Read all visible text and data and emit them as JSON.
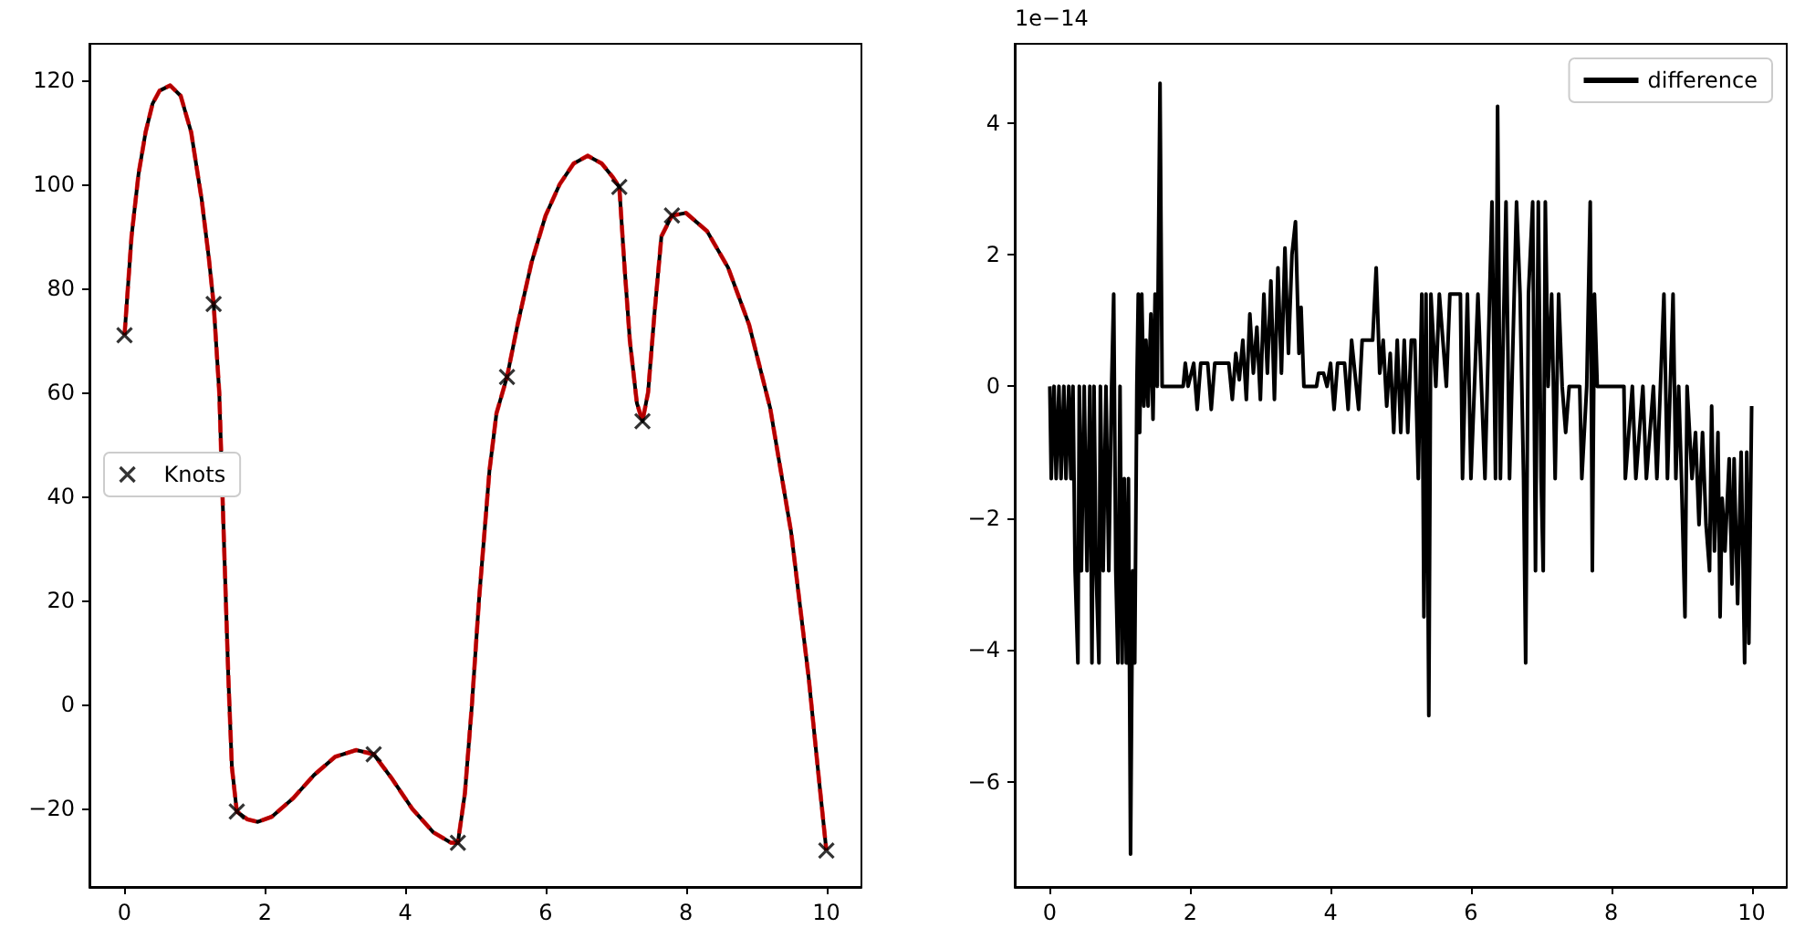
{
  "chart_data": [
    {
      "type": "line",
      "xlim": [
        -0.5,
        10.5
      ],
      "ylim": [
        -35,
        127
      ],
      "xticks": [
        0,
        2,
        4,
        6,
        8,
        10
      ],
      "yticks": [
        -20,
        0,
        20,
        40,
        60,
        80,
        100,
        120
      ],
      "legend": "left",
      "x": [
        0,
        0.1,
        0.2,
        0.3,
        0.4,
        0.5,
        0.65,
        0.8,
        0.95,
        1.1,
        1.2,
        1.27,
        1.35,
        1.42,
        1.48,
        1.53,
        1.6,
        1.75,
        1.9,
        2.1,
        2.4,
        2.7,
        3.0,
        3.3,
        3.55,
        3.8,
        4.1,
        4.4,
        4.65,
        4.75,
        4.85,
        4.95,
        5.05,
        5.2,
        5.3,
        5.45,
        5.6,
        5.8,
        6.0,
        6.2,
        6.4,
        6.6,
        6.8,
        6.95,
        7.05,
        7.12,
        7.2,
        7.3,
        7.38,
        7.46,
        7.55,
        7.65,
        7.8,
        8.0,
        8.3,
        8.6,
        8.9,
        9.2,
        9.5,
        9.75,
        9.9,
        10
      ],
      "series": [
        {
          "color": "#000000",
          "line_style": "solid",
          "values": [
            71,
            90,
            102,
            110,
            115.5,
            118,
            119,
            117,
            110,
            97,
            86,
            77,
            60,
            30,
            5,
            -12,
            -20.5,
            -22,
            -22.5,
            -21.5,
            -18,
            -13.5,
            -10,
            -8.7,
            -9.5,
            -14,
            -20,
            -24.5,
            -26.5,
            -26.5,
            -17,
            0,
            20,
            45,
            56,
            63,
            73,
            85,
            94,
            100,
            104,
            105.5,
            104,
            101.5,
            99.5,
            85,
            70,
            58,
            54.5,
            60,
            75,
            90,
            94,
            94.5,
            91,
            84,
            73,
            57,
            33,
            5,
            -15,
            -28
          ]
        },
        {
          "color": "#ff0000",
          "line_style": "dashed",
          "values": [
            71,
            90,
            102,
            110,
            115.5,
            118,
            119,
            117,
            110,
            97,
            86,
            77,
            60,
            30,
            5,
            -12,
            -20.5,
            -22,
            -22.5,
            -21.5,
            -18,
            -13.5,
            -10,
            -8.7,
            -9.5,
            -14,
            -20,
            -24.5,
            -26.5,
            -26.5,
            -17,
            0,
            20,
            45,
            56,
            63,
            73,
            85,
            94,
            100,
            104,
            105.5,
            104,
            101.5,
            99.5,
            85,
            70,
            58,
            54.5,
            60,
            75,
            90,
            94,
            94.5,
            91,
            84,
            73,
            57,
            33,
            5,
            -15,
            -28
          ]
        },
        {
          "type": "scatter",
          "name": "Knots",
          "color": "#000000",
          "marker": "cross",
          "x": [
            0,
            1.27,
            1.6,
            3.55,
            4.75,
            5.45,
            7.05,
            7.38,
            7.8,
            10
          ],
          "values": [
            71,
            77,
            -20.5,
            -9.5,
            -26.5,
            63,
            99.5,
            54.5,
            94,
            -28
          ]
        }
      ]
    },
    {
      "type": "line",
      "xlim": [
        -0.5,
        10.5
      ],
      "ylim": [
        -7.6,
        5.2
      ],
      "xticks": [
        0,
        2,
        4,
        6,
        8,
        10
      ],
      "yticks": [
        -6,
        -4,
        -2,
        0,
        2,
        4
      ],
      "legend": "top right",
      "annotations": [
        "1e−14"
      ],
      "x": [
        0,
        0.02,
        0.06,
        0.09,
        0.13,
        0.16,
        0.2,
        0.23,
        0.27,
        0.3,
        0.33,
        0.36,
        0.4,
        0.42,
        0.45,
        0.49,
        0.53,
        0.57,
        0.6,
        0.63,
        0.66,
        0.7,
        0.72,
        0.76,
        0.8,
        0.84,
        0.88,
        0.91,
        0.94,
        0.97,
        1.0,
        1.03,
        1.06,
        1.09,
        1.12,
        1.15,
        1.18,
        1.21,
        1.24,
        1.26,
        1.28,
        1.31,
        1.34,
        1.37,
        1.4,
        1.44,
        1.47,
        1.5,
        1.53,
        1.57,
        1.6,
        1.9,
        1.93,
        1.97,
        2.05,
        2.1,
        2.15,
        2.25,
        2.3,
        2.35,
        2.55,
        2.6,
        2.65,
        2.7,
        2.75,
        2.8,
        2.85,
        2.9,
        2.95,
        3.0,
        3.05,
        3.1,
        3.15,
        3.2,
        3.25,
        3.3,
        3.35,
        3.4,
        3.45,
        3.5,
        3.55,
        3.58,
        3.62,
        3.8,
        3.83,
        3.9,
        3.95,
        4.0,
        4.05,
        4.1,
        4.2,
        4.25,
        4.3,
        4.4,
        4.45,
        4.6,
        4.65,
        4.7,
        4.75,
        4.8,
        4.85,
        4.9,
        4.95,
        5.0,
        5.05,
        5.1,
        5.15,
        5.2,
        5.25,
        5.3,
        5.33,
        5.36,
        5.4,
        5.43,
        5.5,
        5.55,
        5.65,
        5.7,
        5.85,
        5.88,
        5.95,
        6.0,
        6.1,
        6.2,
        6.3,
        6.35,
        6.38,
        6.42,
        6.5,
        6.55,
        6.65,
        6.7,
        6.75,
        6.78,
        6.82,
        6.88,
        6.92,
        6.96,
        7.0,
        7.03,
        7.06,
        7.1,
        7.15,
        7.2,
        7.25,
        7.3,
        7.35,
        7.4,
        7.55,
        7.58,
        7.65,
        7.7,
        7.73,
        7.76,
        7.8,
        8.18,
        8.2,
        8.3,
        8.35,
        8.45,
        8.5,
        8.6,
        8.65,
        8.7,
        8.75,
        8.8,
        8.88,
        8.92,
        8.96,
        9.0,
        9.05,
        9.08,
        9.15,
        9.2,
        9.25,
        9.3,
        9.35,
        9.4,
        9.43,
        9.47,
        9.52,
        9.55,
        9.58,
        9.62,
        9.68,
        9.72,
        9.75,
        9.8,
        9.85,
        9.9,
        9.93,
        9.96,
        10
      ],
      "series": [
        {
          "name": "difference",
          "color": "#000000",
          "line_style": "solid",
          "values": [
            0,
            -1.4,
            0,
            -1.4,
            0,
            -1.4,
            0,
            -1.4,
            0,
            -1.4,
            0,
            -2.8,
            -4.2,
            0,
            -2.8,
            0,
            -2.8,
            0,
            -4.2,
            0,
            -2.8,
            -4.2,
            0,
            -2.8,
            0,
            -2.8,
            0,
            1.4,
            -2.8,
            -4.2,
            0,
            -4.2,
            -1.4,
            -4.2,
            -1.4,
            -7.1,
            -2.8,
            -4.2,
            0,
            1.4,
            -0.7,
            1.4,
            -0.3,
            0.7,
            -0.3,
            1.1,
            -0.5,
            1.4,
            0,
            4.6,
            0,
            0,
            0.35,
            0,
            0.35,
            -0.35,
            0.35,
            0.35,
            -0.35,
            0.35,
            0.35,
            -0.2,
            0.5,
            0.1,
            0.7,
            -0.2,
            1.1,
            0.2,
            0.9,
            -0.2,
            1.4,
            0.2,
            1.6,
            -0.2,
            1.8,
            0.2,
            2.1,
            0.5,
            2.0,
            2.5,
            0.5,
            1.2,
            0,
            0,
            0.2,
            0.2,
            0,
            0.35,
            -0.35,
            0.35,
            0.35,
            -0.35,
            0.7,
            -0.35,
            0.7,
            0.7,
            1.8,
            0.2,
            0.7,
            -0.3,
            0.5,
            -0.7,
            0.7,
            -0.7,
            0.7,
            -0.7,
            0.7,
            0.7,
            -1.4,
            1.4,
            -3.5,
            1.4,
            -5.0,
            1.4,
            0,
            1.4,
            0,
            1.4,
            1.4,
            -1.4,
            1.4,
            -1.4,
            1.4,
            -1.4,
            2.8,
            -1.4,
            4.25,
            -1.4,
            2.8,
            -1.4,
            2.8,
            1.4,
            -1.4,
            -4.2,
            1.4,
            2.8,
            -2.8,
            2.8,
            -1.4,
            -2.8,
            2.8,
            0,
            1.4,
            -1.4,
            1.4,
            0,
            -0.7,
            0,
            0,
            -1.4,
            0,
            2.8,
            -2.8,
            1.4,
            0,
            0,
            -1.4,
            0,
            -1.4,
            0,
            -1.4,
            0,
            -1.4,
            0,
            1.4,
            -1.4,
            1.4,
            -1.4,
            0,
            -1.4,
            -3.5,
            0,
            -1.4,
            -0.7,
            -2.1,
            -0.7,
            -2.1,
            -2.8,
            -0.3,
            -2.5,
            -0.7,
            -3.5,
            -1.7,
            -2.5,
            -1.1,
            -3,
            -1.1,
            -3.3,
            -1.0,
            -4.2,
            -1.0,
            -3.9,
            -0.3
          ]
        }
      ]
    }
  ]
}
